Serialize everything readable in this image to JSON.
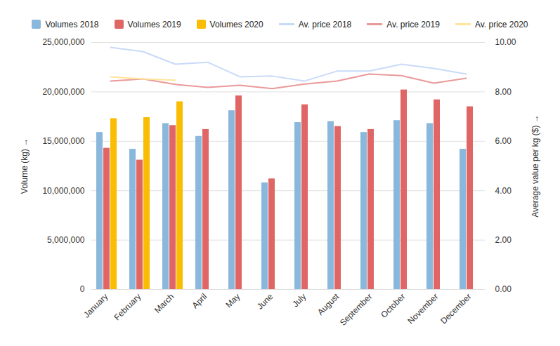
{
  "chart_data": {
    "type": "bar",
    "x_label": null,
    "y_label": "Volume (kg)",
    "y2_label": "Average value per kg ($)",
    "categories": [
      "January",
      "February",
      "March",
      "April",
      "May",
      "June",
      "July",
      "August",
      "September",
      "October",
      "November",
      "December"
    ],
    "series": [
      {
        "name": "Volumes 2018",
        "type": "bar",
        "color": "#8ab8dc",
        "values": [
          15900000,
          14200000,
          16800000,
          15500000,
          18100000,
          10800000,
          16900000,
          17000000,
          15900000,
          17100000,
          16800000,
          14200000
        ]
      },
      {
        "name": "Volumes 2019",
        "type": "bar",
        "color": "#e06666",
        "values": [
          14300000,
          13100000,
          16600000,
          16200000,
          19600000,
          11200000,
          18700000,
          16500000,
          16200000,
          20200000,
          19200000,
          18500000
        ]
      },
      {
        "name": "Volumes 2020",
        "type": "bar",
        "color": "#fbbc04",
        "values": [
          17300000,
          17400000,
          19000000,
          null,
          null,
          null,
          null,
          null,
          null,
          null,
          null,
          null
        ]
      },
      {
        "name": "Av. price 2018",
        "type": "line",
        "axis": "y2",
        "color": "#c9daf8",
        "values": [
          9.8,
          9.63,
          9.12,
          9.2,
          8.61,
          8.64,
          8.44,
          8.84,
          8.84,
          9.12,
          8.95,
          8.72
        ]
      },
      {
        "name": "Av. price 2019",
        "type": "line",
        "axis": "y2",
        "color": "#ea9999",
        "values": [
          8.44,
          8.52,
          8.3,
          8.18,
          8.27,
          8.13,
          8.32,
          8.44,
          8.72,
          8.66,
          8.35,
          8.55
        ]
      },
      {
        "name": "Av. price 2020",
        "type": "line",
        "axis": "y2",
        "color": "#ffe599",
        "values": [
          8.61,
          8.52,
          8.47,
          null,
          null,
          null,
          null,
          null,
          null,
          null,
          null,
          null
        ]
      }
    ],
    "ylim": [
      0,
      25000000
    ],
    "yticks": [
      0,
      {
        "value": 5000000,
        "label": "5,000,000"
      },
      {
        "value": 10000000,
        "label": "10,000,000"
      },
      {
        "value": 15000000,
        "label": "15,000,000"
      },
      {
        "value": 20000000,
        "label": "20,000,000"
      },
      {
        "value": 25000000,
        "label": "25,000,000"
      }
    ],
    "y2lim": [
      0,
      10
    ],
    "y2ticks": [
      {
        "value": 0,
        "label": "0.00"
      },
      {
        "value": 2,
        "label": "2.00"
      },
      {
        "value": 4,
        "label": "4.00"
      },
      {
        "value": 6,
        "label": "6.00"
      },
      {
        "value": 8,
        "label": "8.00"
      },
      {
        "value": 10,
        "label": "10.00"
      }
    ],
    "grid": true,
    "legend": "top"
  }
}
